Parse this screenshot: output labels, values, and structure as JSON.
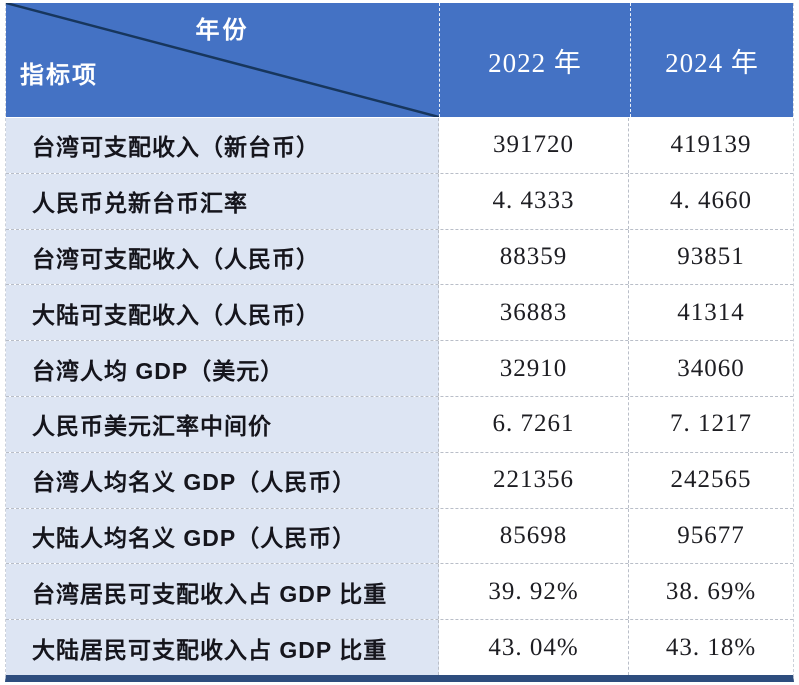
{
  "table": {
    "corner": {
      "year_label": "年份",
      "indicator_label": "指标项"
    },
    "columns": [
      "2022 年",
      "2024 年"
    ],
    "rows": [
      {
        "indicator": "台湾可支配收入（新台币）",
        "y2022": "391720",
        "y2024": "419139"
      },
      {
        "indicator": "人民币兑新台币汇率",
        "y2022": "4. 4333",
        "y2024": "4. 4660"
      },
      {
        "indicator": "台湾可支配收入（人民币）",
        "y2022": "88359",
        "y2024": "93851"
      },
      {
        "indicator": "大陆可支配收入（人民币）",
        "y2022": "36883",
        "y2024": "41314"
      },
      {
        "indicator": "台湾人均 GDP（美元）",
        "y2022": "32910",
        "y2024": "34060"
      },
      {
        "indicator": "人民币美元汇率中间价",
        "y2022": "6. 7261",
        "y2024": "7. 1217"
      },
      {
        "indicator": "台湾人均名义 GDP（人民币）",
        "y2022": "221356",
        "y2024": "242565"
      },
      {
        "indicator": "大陆人均名义 GDP（人民币）",
        "y2022": "85698",
        "y2024": "95677"
      },
      {
        "indicator": "台湾居民可支配收入占 GDP 比重",
        "y2022": "39. 92%",
        "y2024": "38. 69%"
      },
      {
        "indicator": "大陆居民可支配收入占 GDP 比重",
        "y2022": "43. 04%",
        "y2024": "43. 18%"
      }
    ],
    "colors": {
      "header_bg": "#4472c4",
      "header_text": "#ffffff",
      "indicator_cell_bg": "#dde5f3",
      "value_cell_bg": "#ffffff",
      "bottom_bar": "#2e4d7e",
      "diagonal_line": "#17365d",
      "dashed_grid": "#b9bec8"
    }
  },
  "chart_data": {
    "type": "table",
    "title": "",
    "corner_axis_labels": {
      "columns_axis": "年份",
      "rows_axis": "指标项"
    },
    "columns": [
      "指标项",
      "2022 年",
      "2024 年"
    ],
    "rows": [
      [
        "台湾可支配收入（新台币）",
        391720,
        419139
      ],
      [
        "人民币兑新台币汇率",
        4.4333,
        4.466
      ],
      [
        "台湾可支配收入（人民币）",
        88359,
        93851
      ],
      [
        "大陆可支配收入（人民币）",
        36883,
        41314
      ],
      [
        "台湾人均 GDP（美元）",
        32910,
        34060
      ],
      [
        "人民币美元汇率中间价",
        6.7261,
        7.1217
      ],
      [
        "台湾人均名义 GDP（人民币）",
        221356,
        242565
      ],
      [
        "大陆人均名义 GDP（人民币）",
        85698,
        95677
      ],
      [
        "台湾居民可支配收入占 GDP 比重",
        "39.92%",
        "38.69%"
      ],
      [
        "大陆居民可支配收入占 GDP 比重",
        "43.04%",
        "43.18%"
      ]
    ]
  }
}
